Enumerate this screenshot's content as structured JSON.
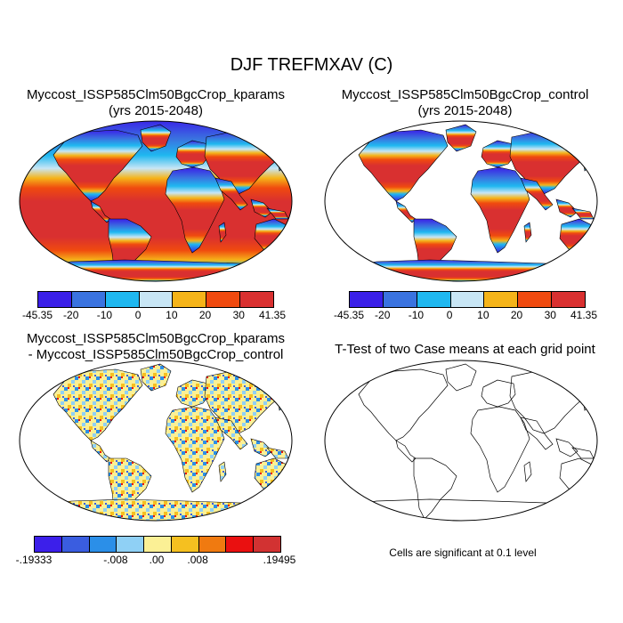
{
  "figure": {
    "title": "DJF TREFMXAV (C)"
  },
  "panels": [
    {
      "id": "kparams",
      "title_line1": "Myccost_ISSP585Clm50BgcCrop_kparams",
      "title_line2": "(yrs 2015-2048)"
    },
    {
      "id": "control",
      "title_line1": "Myccost_ISSP585Clm50BgcCrop_control",
      "title_line2": "(yrs 2015-2048)"
    },
    {
      "id": "difference",
      "title_line1": "Myccost_ISSP585Clm50BgcCrop_kparams",
      "title_line2": "- Myccost_ISSP585Clm50BgcCrop_control"
    },
    {
      "id": "ttest",
      "title_line1": "T-Test of two Case means at each grid point",
      "title_line2": ""
    }
  ],
  "colorbars": {
    "temperature": {
      "colors": [
        "#3a1fe8",
        "#3a73e0",
        "#1fb8f0",
        "#c8e6f5",
        "#f5b419",
        "#f04a0f",
        "#d93030"
      ],
      "labels": [
        "-45.35",
        "-20",
        "-10",
        "0",
        "10",
        "20",
        "30",
        "41.35"
      ]
    },
    "difference": {
      "colors": [
        "#3c1fea",
        "#3a5de0",
        "#2b8fe8",
        "#8fd0f5",
        "#fbf095",
        "#f5c020",
        "#f07a10",
        "#ea1010",
        "#d23232"
      ],
      "labels": [
        "-.19333",
        "-.008",
        ".00",
        ".008",
        ".19495"
      ]
    }
  },
  "notes": {
    "significance": "Cells are significant at 0.1 level"
  }
}
